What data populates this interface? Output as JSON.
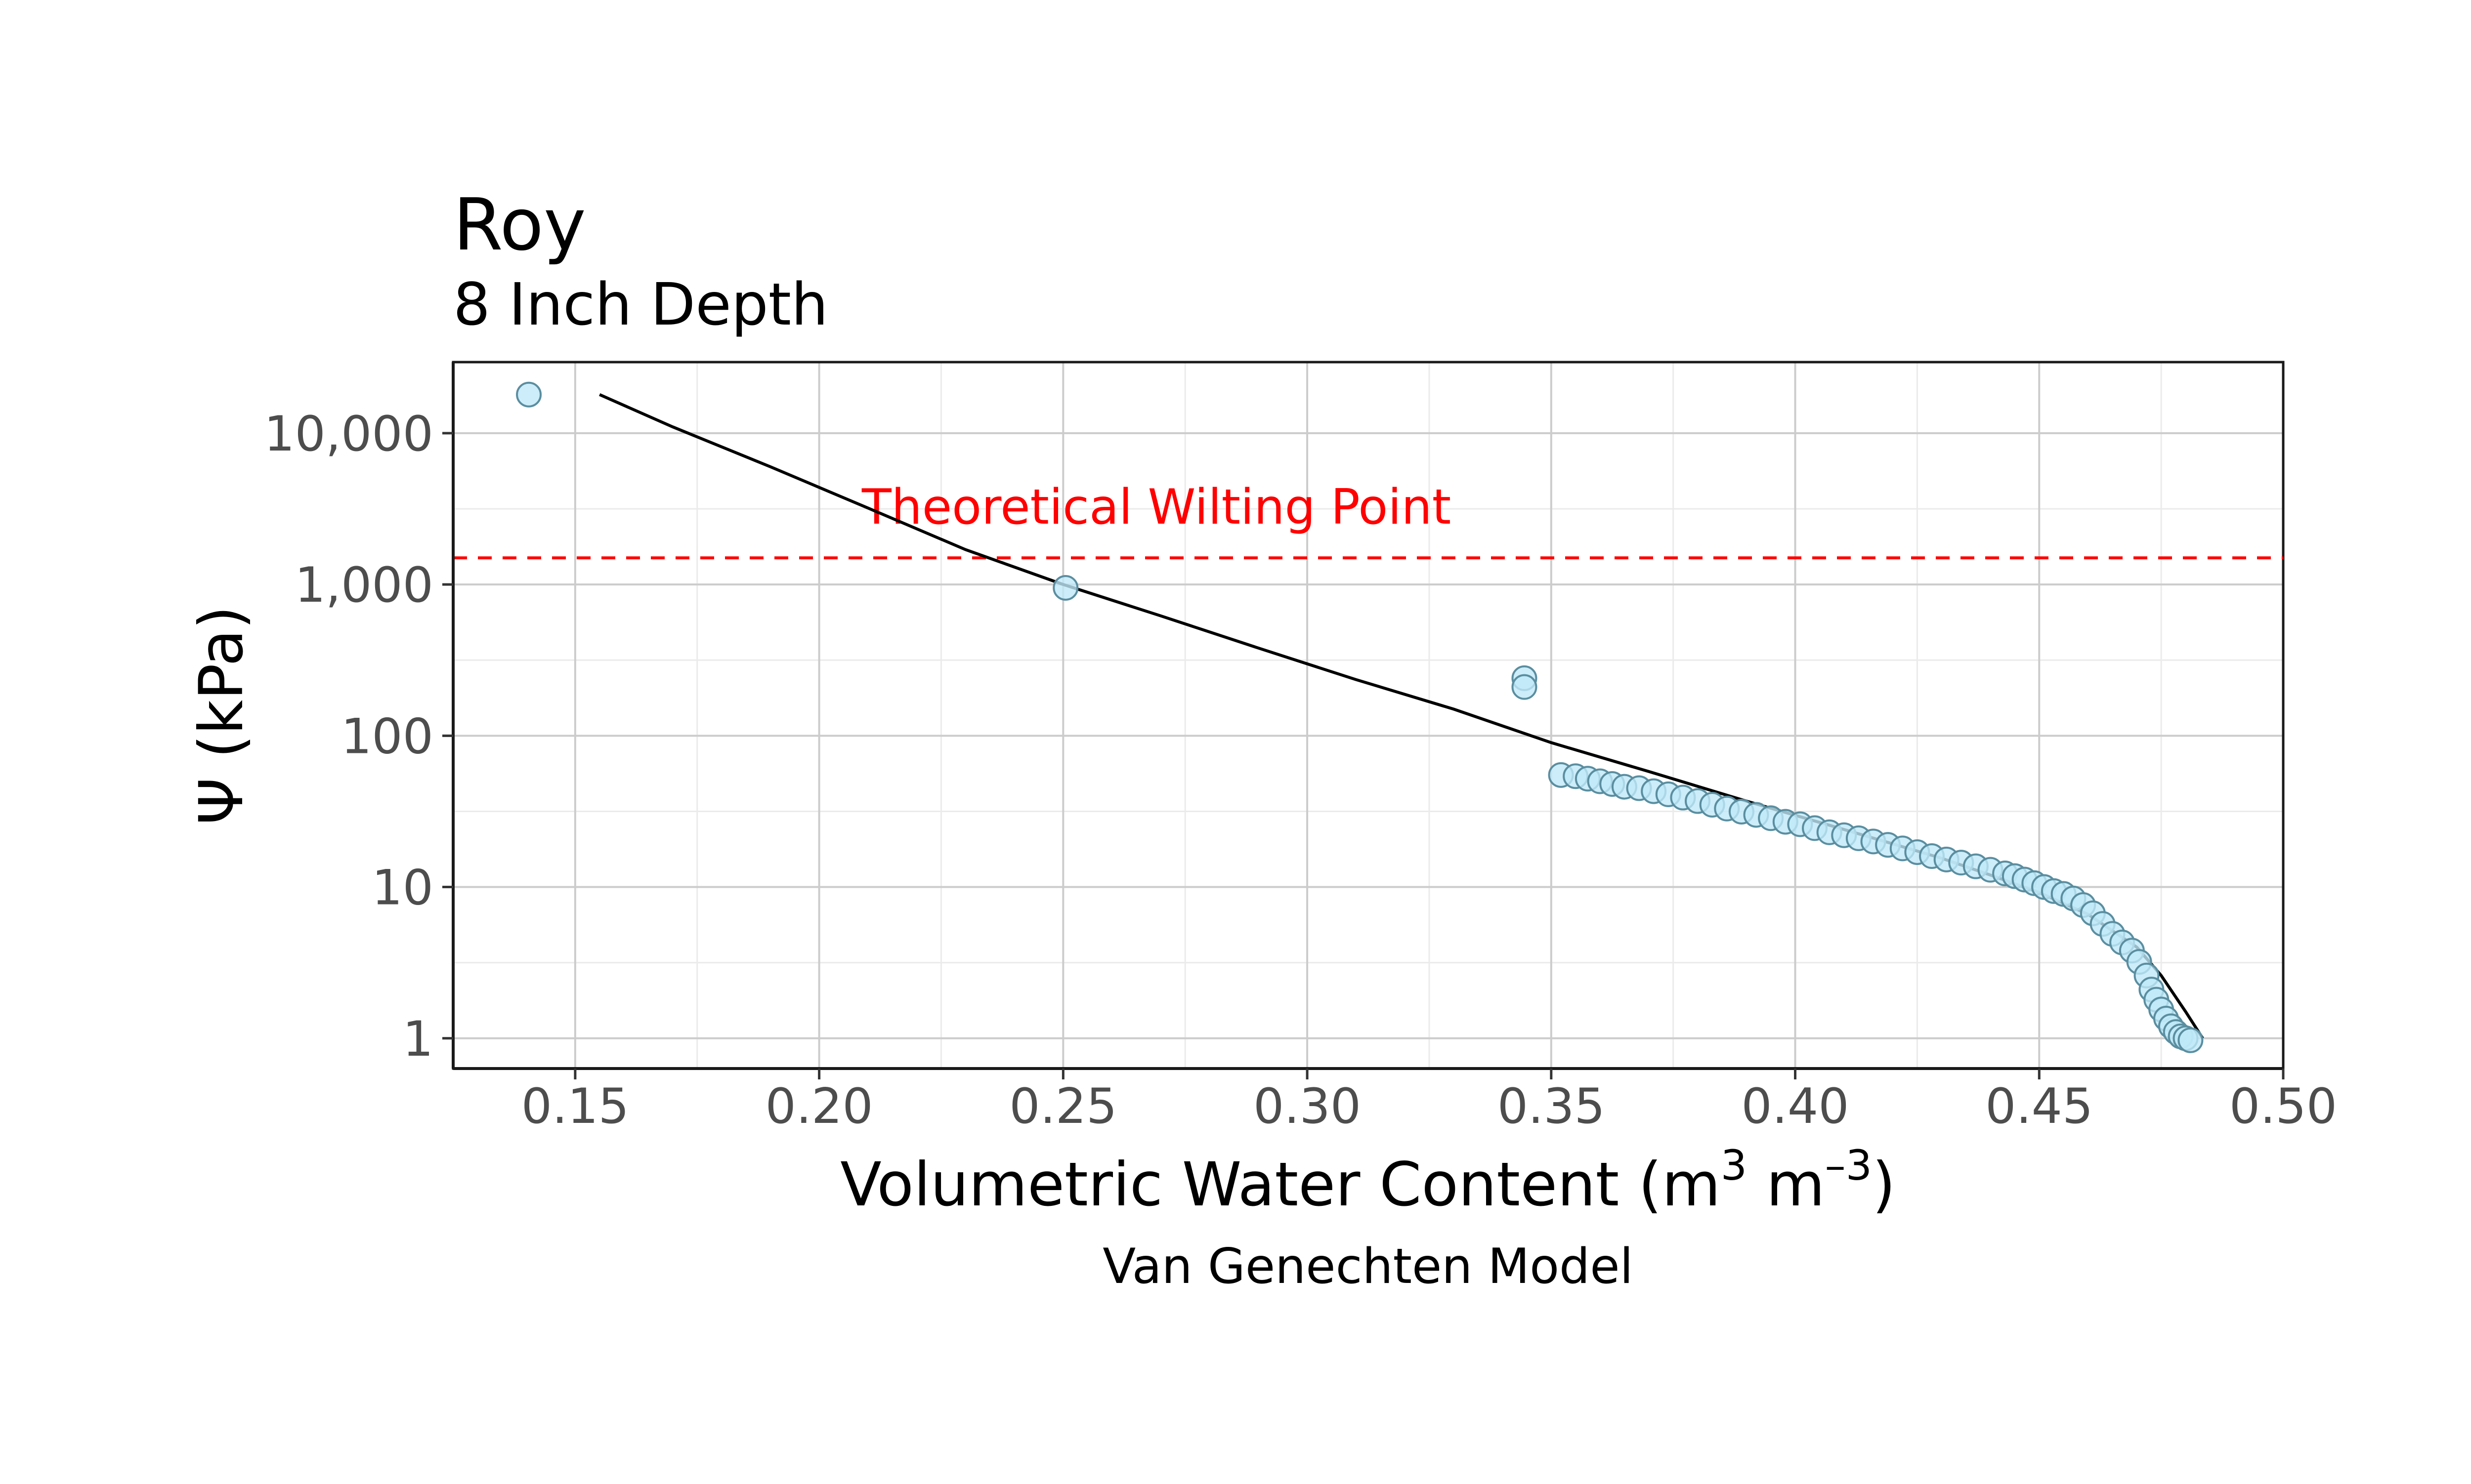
{
  "chart_data": {
    "type": "scatter",
    "title": "Roy",
    "subtitle": "8 Inch Depth",
    "xlabel_main": "Volumetric Water Content (m",
    "xlabel_sup1": "3",
    "xlabel_mid": " m",
    "xlabel_sup2": "–3",
    "xlabel_end": ")",
    "ylabel": "Ψ (kPa)",
    "caption": "Van Genechten Model",
    "xlim": [
      0.125,
      0.5
    ],
    "ylim_log10": [
      -0.2,
      4.47
    ],
    "y_scale": "log10",
    "grid": true,
    "x_ticks": [
      0.15,
      0.2,
      0.25,
      0.3,
      0.35,
      0.4,
      0.45,
      0.5
    ],
    "x_tick_labels": [
      "0.15",
      "0.20",
      "0.25",
      "0.30",
      "0.35",
      "0.40",
      "0.45",
      "0.50"
    ],
    "y_ticks": [
      1,
      10,
      100,
      1000,
      10000
    ],
    "y_tick_labels": [
      "1",
      "10",
      "100",
      "1,000",
      "10,000"
    ],
    "reference_line": {
      "label": "Theoretical Wilting Point",
      "y": 1500,
      "color": "#ff0000"
    },
    "point_fill": "#bfe9f7",
    "point_stroke": "#5a8ea0",
    "curve_color": "#000000",
    "points": {
      "x": [
        0.1405,
        0.2505,
        0.3445,
        0.3445,
        0.352,
        0.355,
        0.3575,
        0.36,
        0.3625,
        0.365,
        0.368,
        0.371,
        0.374,
        0.377,
        0.38,
        0.383,
        0.386,
        0.389,
        0.392,
        0.395,
        0.398,
        0.401,
        0.404,
        0.407,
        0.41,
        0.413,
        0.416,
        0.419,
        0.422,
        0.425,
        0.428,
        0.431,
        0.434,
        0.437,
        0.44,
        0.443,
        0.445,
        0.447,
        0.449,
        0.451,
        0.453,
        0.455,
        0.457,
        0.459,
        0.461,
        0.463,
        0.465,
        0.467,
        0.469,
        0.4705,
        0.472,
        0.473,
        0.474,
        0.475,
        0.476,
        0.477,
        0.478,
        0.479,
        0.48,
        0.481
      ],
      "y": [
        18000,
        950,
        240,
        210,
        55,
        54,
        52,
        50,
        48,
        46,
        45,
        43,
        41,
        39,
        37,
        35,
        33,
        31.5,
        30,
        28.5,
        27,
        26,
        24.5,
        23,
        22,
        21,
        20,
        19,
        18,
        17,
        16,
        15.2,
        14.5,
        13.7,
        13,
        12.3,
        11.8,
        11.2,
        10.6,
        10,
        9.4,
        9,
        8.4,
        7.6,
        6.7,
        5.7,
        4.9,
        4.3,
        3.8,
        3.2,
        2.6,
        2.1,
        1.8,
        1.55,
        1.35,
        1.2,
        1.1,
        1.03,
        1.0,
        0.97
      ]
    },
    "curve": {
      "x": [
        0.155,
        0.17,
        0.19,
        0.21,
        0.23,
        0.25,
        0.27,
        0.29,
        0.31,
        0.33,
        0.35,
        0.37,
        0.39,
        0.41,
        0.43,
        0.44,
        0.45,
        0.46,
        0.47,
        0.475,
        0.48,
        0.4835
      ],
      "y": [
        18000,
        11000,
        6000,
        3200,
        1700,
        1000,
        620,
        380,
        235,
        150,
        90,
        58,
        37,
        24,
        15.5,
        12,
        9.2,
        6.6,
        4.0,
        2.6,
        1.5,
        1.0
      ]
    }
  }
}
